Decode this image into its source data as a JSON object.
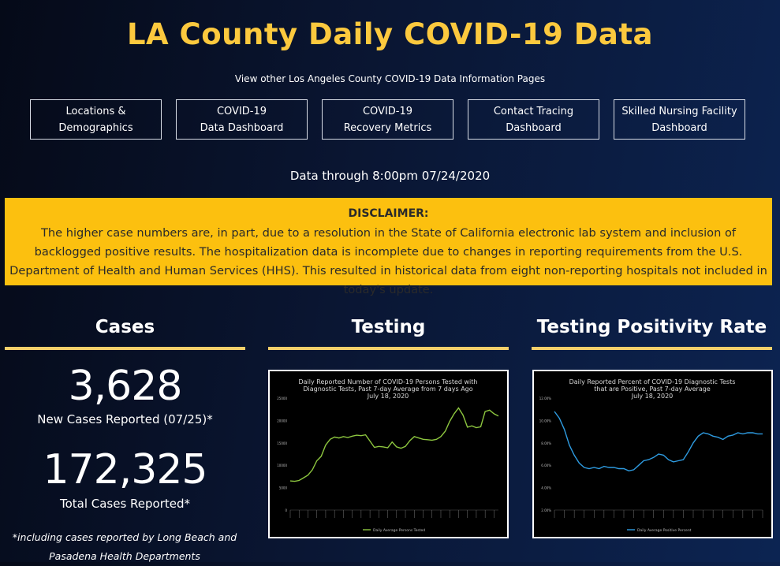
{
  "header": {
    "title": "LA County Daily COVID-19 Data",
    "subtitle": "View other Los Angeles County COVID-19 Data Information Pages"
  },
  "nav": [
    {
      "line1": "Locations &",
      "line2": "Demographics"
    },
    {
      "line1": "COVID-19",
      "line2": "Data Dashboard"
    },
    {
      "line1": "COVID-19",
      "line2": "Recovery Metrics"
    },
    {
      "line1": "Contact Tracing",
      "line2": "Dashboard"
    },
    {
      "line1": "Skilled Nursing Facility",
      "line2": "Dashboard"
    }
  ],
  "as_of": "Data through 8:00pm 07/24/2020",
  "disclaimer": {
    "heading": "DISCLAIMER:",
    "body": "The higher case numbers are, in part, due to a resolution in the State of California electronic lab system and inclusion of backlogged positive results. The hospitalization data is incomplete due to changes in reporting requirements from the U.S. Department of Health and Human Services (HHS). This resulted in historical data from eight non-reporting hospitals not included in today's update."
  },
  "columns": {
    "cases": "Cases",
    "testing": "Testing",
    "positivity": "Testing Positivity Rate"
  },
  "cases": {
    "new_value": "3,628",
    "new_label": "New Cases Reported (07/25)*",
    "total_value": "172,325",
    "total_label": "Total Cases Reported*",
    "footnote": "*including cases reported by Long Beach and Pasadena Health Departments"
  },
  "colors": {
    "title": "#fcc93e",
    "disclaimer_bg": "#fcc00f",
    "rule": "#f5cf6a",
    "testing_line": "#8dc63f",
    "positivity_line": "#2e9be0"
  },
  "chart_data": [
    {
      "type": "line",
      "title": "Daily Reported Number of COVID-19 Persons Tested with Diagnostic Tests, Past 7-day Average from 7 days Ago",
      "subtitle": "July 18, 2020",
      "yticks": [
        "0",
        "5000",
        "10000",
        "15000",
        "20000",
        "25000"
      ],
      "ylim": [
        0,
        25000
      ],
      "legend": "Daily Average Persons Tested",
      "series": [
        {
          "name": "Daily Average Persons Tested",
          "values": [
            6500,
            6400,
            6600,
            7200,
            7800,
            9000,
            11000,
            12000,
            14500,
            15800,
            16300,
            16100,
            16400,
            16200,
            16500,
            16700,
            16600,
            16800,
            15400,
            14000,
            14200,
            14100,
            13900,
            15200,
            14100,
            13800,
            14200,
            15500,
            16400,
            16100,
            15800,
            15700,
            15600,
            15800,
            16400,
            17600,
            19800,
            21500,
            22800,
            21200,
            18500,
            18800,
            18400,
            18600,
            22000,
            22300,
            21500,
            21000
          ]
        }
      ]
    },
    {
      "type": "line",
      "title": "Daily Reported Percent of COVID-19 Diagnostic Tests that are Positive, Past 7-day Average",
      "subtitle": "July 18, 2020",
      "yticks": [
        "2.00%",
        "4.00%",
        "6.00%",
        "8.00%",
        "10.00%",
        "12.00%"
      ],
      "ylim": [
        2,
        12
      ],
      "legend": "Daily Average Positive Percent",
      "series": [
        {
          "name": "Daily Average Positive Percent",
          "values": [
            10.8,
            10.2,
            9.2,
            7.8,
            6.9,
            6.2,
            5.8,
            5.7,
            5.8,
            5.7,
            5.9,
            5.8,
            5.8,
            5.7,
            5.7,
            5.5,
            5.6,
            6.0,
            6.4,
            6.5,
            6.7,
            7.0,
            6.9,
            6.5,
            6.3,
            6.4,
            6.5,
            7.2,
            8.0,
            8.6,
            8.9,
            8.8,
            8.6,
            8.5,
            8.3,
            8.6,
            8.7,
            8.9,
            8.8,
            8.9,
            8.9,
            8.8,
            8.8
          ]
        }
      ]
    }
  ]
}
